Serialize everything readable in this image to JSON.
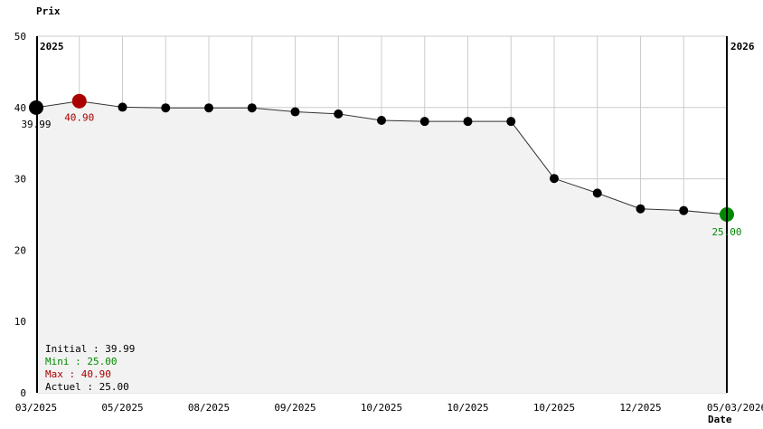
{
  "chart_data": {
    "type": "line",
    "ylabel": "Prix",
    "xlabel": "Date",
    "ylim": [
      0,
      50
    ],
    "y_ticks": [
      0,
      10,
      20,
      30,
      40,
      50
    ],
    "x_tick_labels": [
      "03/2025",
      "05/2025",
      "08/2025",
      "09/2025",
      "10/2025",
      "10/2025",
      "10/2025",
      "12/2025",
      "05/03/2026"
    ],
    "year_labels": [
      "2025",
      "2026"
    ],
    "grid": true,
    "values": [
      39.99,
      40.9,
      40.05,
      39.95,
      39.95,
      39.95,
      39.4,
      39.1,
      38.2,
      38.05,
      38.05,
      38.05,
      30.05,
      28.0,
      25.8,
      25.55,
      25.0
    ],
    "highlights": {
      "initial": {
        "label": "39.99",
        "color": "#000000"
      },
      "max": {
        "label": "40.90",
        "color": "#aa0000"
      },
      "current": {
        "label": "25.00",
        "color": "#008800"
      }
    },
    "summary": [
      {
        "text": "Initial : 39.99",
        "color": "#000000"
      },
      {
        "text": "Mini : 25.00",
        "color": "#008800"
      },
      {
        "text": "Max : 40.90",
        "color": "#aa0000"
      },
      {
        "text": "Actuel : 25.00",
        "color": "#000000"
      }
    ]
  }
}
